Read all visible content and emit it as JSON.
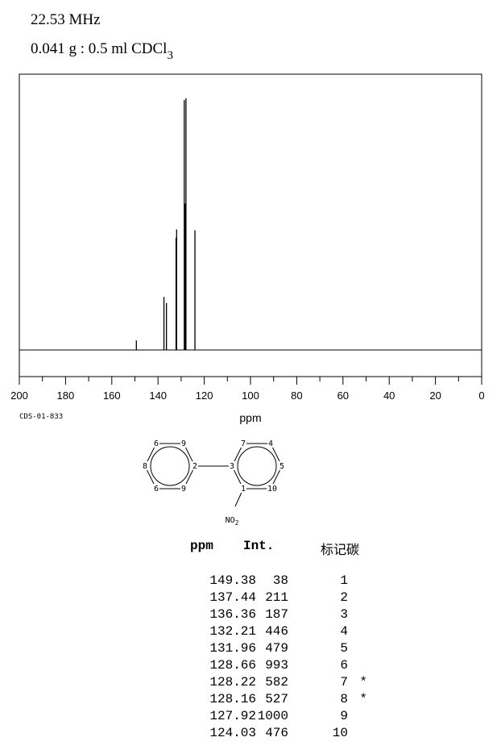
{
  "header": {
    "frequency": "22.53 MHz",
    "sample_main": "0.041 g : 0.5 ml CDCl",
    "sample_sub": "3"
  },
  "chart_data": {
    "type": "line",
    "title": "",
    "xlabel": "ppm",
    "ylabel": "",
    "xlim": [
      200,
      0
    ],
    "x_ticks": [
      200,
      180,
      160,
      140,
      120,
      100,
      80,
      60,
      40,
      20,
      0
    ],
    "ylim": [
      0,
      1000
    ],
    "grid": false,
    "series": [
      {
        "peaks": [
          {
            "ppm": 149.38,
            "int": 38
          },
          {
            "ppm": 137.44,
            "int": 211
          },
          {
            "ppm": 136.36,
            "int": 187
          },
          {
            "ppm": 132.21,
            "int": 446
          },
          {
            "ppm": 131.96,
            "int": 479
          },
          {
            "ppm": 128.66,
            "int": 993
          },
          {
            "ppm": 128.22,
            "int": 582
          },
          {
            "ppm": 128.16,
            "int": 527
          },
          {
            "ppm": 127.92,
            "int": 1000
          },
          {
            "ppm": 124.03,
            "int": 476
          }
        ]
      }
    ]
  },
  "code": "CDS-01-833",
  "structure": {
    "atom_labels": [
      "6",
      "9",
      "8",
      "2",
      "6",
      "9",
      "7",
      "4",
      "3",
      "5",
      "1",
      "10"
    ],
    "substituent": "NO",
    "substituent_sub": "2"
  },
  "table": {
    "headers": {
      "ppm": "ppm",
      "int": "Int.",
      "assign": "标记碳"
    },
    "rows": [
      {
        "ppm": "149.38",
        "int": "38",
        "assign": "1",
        "mark": ""
      },
      {
        "ppm": "137.44",
        "int": "211",
        "assign": "2",
        "mark": ""
      },
      {
        "ppm": "136.36",
        "int": "187",
        "assign": "3",
        "mark": ""
      },
      {
        "ppm": "132.21",
        "int": "446",
        "assign": "4",
        "mark": ""
      },
      {
        "ppm": "131.96",
        "int": "479",
        "assign": "5",
        "mark": ""
      },
      {
        "ppm": "128.66",
        "int": "993",
        "assign": "6",
        "mark": ""
      },
      {
        "ppm": "128.22",
        "int": "582",
        "assign": "7",
        "mark": "*"
      },
      {
        "ppm": "128.16",
        "int": "527",
        "assign": "8",
        "mark": "*"
      },
      {
        "ppm": "127.92",
        "int": "1000",
        "assign": "9",
        "mark": ""
      },
      {
        "ppm": "124.03",
        "int": "476",
        "assign": "10",
        "mark": ""
      }
    ]
  }
}
